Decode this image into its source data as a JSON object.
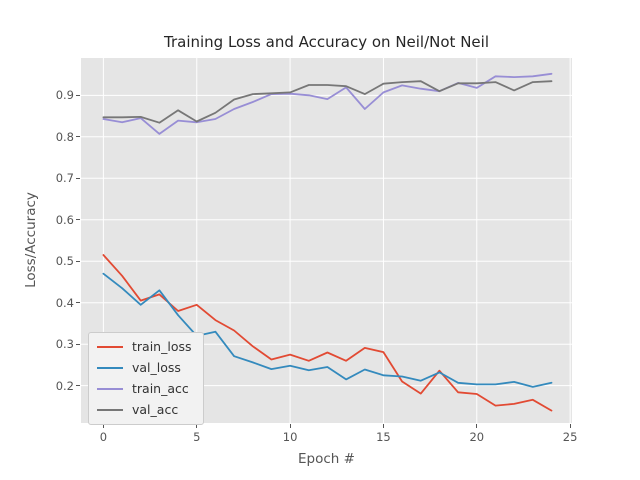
{
  "figure": {
    "title": "Training Loss and Accuracy on Neil/Not Neil",
    "xlabel": "Epoch #",
    "ylabel": "Loss/Accuracy"
  },
  "chart_data": {
    "type": "line",
    "title": "Training Loss and Accuracy on Neil/Not Neil",
    "xlabel": "Epoch #",
    "ylabel": "Loss/Accuracy",
    "x": [
      0,
      1,
      2,
      3,
      4,
      5,
      6,
      7,
      8,
      9,
      10,
      11,
      12,
      13,
      14,
      15,
      16,
      17,
      18,
      19,
      20,
      21,
      22,
      23,
      24
    ],
    "series": [
      {
        "name": "train_loss",
        "color": "#E24A33",
        "values": [
          0.515,
          0.465,
          0.405,
          0.42,
          0.38,
          0.395,
          0.358,
          0.333,
          0.295,
          0.263,
          0.275,
          0.26,
          0.28,
          0.26,
          0.291,
          0.281,
          0.21,
          0.181,
          0.236,
          0.184,
          0.18,
          0.152,
          0.156,
          0.166,
          0.14
        ]
      },
      {
        "name": "val_loss",
        "color": "#348ABD",
        "values": [
          0.47,
          0.435,
          0.395,
          0.43,
          0.37,
          0.32,
          0.33,
          0.271,
          0.256,
          0.24,
          0.248,
          0.237,
          0.245,
          0.215,
          0.239,
          0.225,
          0.222,
          0.212,
          0.232,
          0.207,
          0.203,
          0.203,
          0.209,
          0.197,
          0.207
        ]
      },
      {
        "name": "train_acc",
        "color": "#988ED5",
        "values": [
          0.843,
          0.835,
          0.845,
          0.807,
          0.839,
          0.835,
          0.843,
          0.867,
          0.884,
          0.903,
          0.904,
          0.9,
          0.891,
          0.919,
          0.867,
          0.907,
          0.924,
          0.916,
          0.91,
          0.93,
          0.918,
          0.946,
          0.944,
          0.946,
          0.952
        ]
      },
      {
        "name": "val_acc",
        "color": "#777777",
        "values": [
          0.847,
          0.847,
          0.848,
          0.834,
          0.864,
          0.837,
          0.858,
          0.89,
          0.903,
          0.905,
          0.907,
          0.925,
          0.925,
          0.922,
          0.903,
          0.928,
          0.932,
          0.934,
          0.91,
          0.929,
          0.929,
          0.932,
          0.912,
          0.932,
          0.934
        ]
      }
    ],
    "xlim": [
      -1.2,
      25.1
    ],
    "ylim": [
      0.11,
      0.99
    ],
    "xticks": [
      0,
      5,
      10,
      15,
      20,
      25
    ],
    "yticks": [
      0.2,
      0.3,
      0.4,
      0.5,
      0.6,
      0.7,
      0.8,
      0.9
    ],
    "grid": true,
    "legend_position": "lower-left",
    "style": {
      "plot_bg": "#E5E5E5",
      "grid_color": "#FFFFFF",
      "tick_color": "#555555",
      "title_color": "#262626",
      "legend_bg": "#F2F2F2",
      "legend_border": "#CCCCCC",
      "line_width": 1.8
    }
  }
}
